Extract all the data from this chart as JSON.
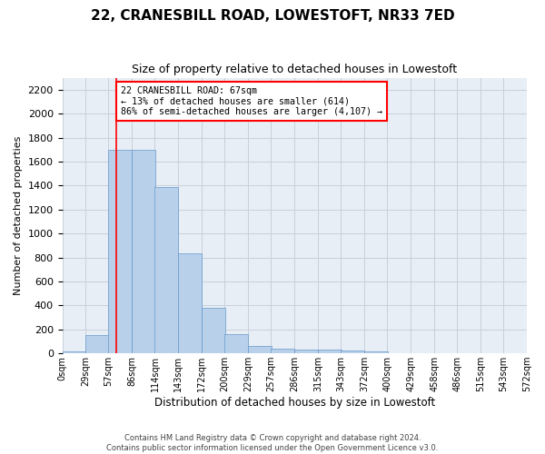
{
  "title": "22, CRANESBILL ROAD, LOWESTOFT, NR33 7ED",
  "subtitle": "Size of property relative to detached houses in Lowestoft",
  "xlabel": "Distribution of detached houses by size in Lowestoft",
  "ylabel": "Number of detached properties",
  "footer_line1": "Contains HM Land Registry data © Crown copyright and database right 2024.",
  "footer_line2": "Contains public sector information licensed under the Open Government Licence v3.0.",
  "bin_edges": [
    0,
    29,
    57,
    86,
    114,
    143,
    172,
    200,
    229,
    257,
    286,
    315,
    343,
    372,
    400,
    429,
    458,
    486,
    515,
    543,
    572
  ],
  "bar_heights": [
    15,
    155,
    1700,
    1700,
    1390,
    835,
    380,
    160,
    65,
    40,
    30,
    30,
    25,
    18,
    0,
    0,
    0,
    0,
    0,
    0
  ],
  "bar_color": "#b8d0ea",
  "bar_edgecolor": "#6699cc",
  "grid_color": "#c8d0dc",
  "background_color": "#e8eef5",
  "vline_x": 67,
  "vline_color": "red",
  "annotation_line1": "22 CRANESBILL ROAD: 67sqm",
  "annotation_line2": "← 13% of detached houses are smaller (614)",
  "annotation_line3": "86% of semi-detached houses are larger (4,107) →",
  "annotation_box_color": "white",
  "annotation_box_edgecolor": "red",
  "ylim": [
    0,
    2300
  ],
  "yticks": [
    0,
    200,
    400,
    600,
    800,
    1000,
    1200,
    1400,
    1600,
    1800,
    2000,
    2200
  ]
}
